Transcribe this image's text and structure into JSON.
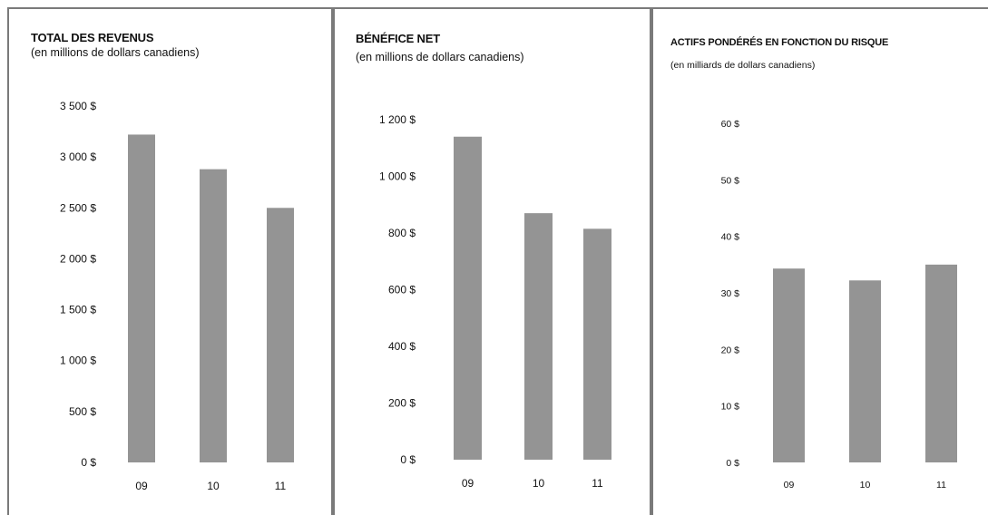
{
  "colors": {
    "bar": "#949494",
    "border": "#7a7a7a"
  },
  "chart_data": [
    {
      "type": "bar",
      "title": "TOTAL DES REVENUS",
      "subtitle": "(en millions de dollars canadiens)",
      "categories": [
        "09",
        "10",
        "11"
      ],
      "values": [
        3220,
        2880,
        2500
      ],
      "ylim": [
        0,
        3500
      ],
      "yticks": [
        0,
        500,
        1000,
        1500,
        2000,
        2500,
        3000,
        3500
      ],
      "ytick_labels": [
        "0 $",
        "500 $",
        "1 000 $",
        "1 500 $",
        "2 000 $",
        "2 500 $",
        "3 000 $",
        "3 500 $"
      ],
      "grid": false
    },
    {
      "type": "bar",
      "title": "BÉNÉFICE NET",
      "subtitle": "(en millions de dollars canadiens)",
      "categories": [
        "09",
        "10",
        "11"
      ],
      "values": [
        1140,
        870,
        815
      ],
      "ylim": [
        0,
        1200
      ],
      "yticks": [
        0,
        200,
        400,
        600,
        800,
        1000,
        1200
      ],
      "ytick_labels": [
        "0 $",
        "200 $",
        "400 $",
        "600 $",
        "800 $",
        "1 000 $",
        "1 200 $"
      ],
      "grid": false
    },
    {
      "type": "bar",
      "title": "ACTIFS PONDÉRÉS EN FONCTION DU RISQUE",
      "subtitle": "(en milliards de dollars  canadiens)",
      "categories": [
        "09",
        "10",
        "11"
      ],
      "values": [
        34.3,
        32.2,
        35
      ],
      "ylim": [
        0,
        60
      ],
      "yticks": [
        0,
        10,
        20,
        30,
        40,
        50,
        60
      ],
      "ytick_labels": [
        "0 $",
        "10 $",
        "20 $",
        "30 $",
        "40 $",
        "50 $",
        "60 $"
      ],
      "grid": false
    }
  ]
}
